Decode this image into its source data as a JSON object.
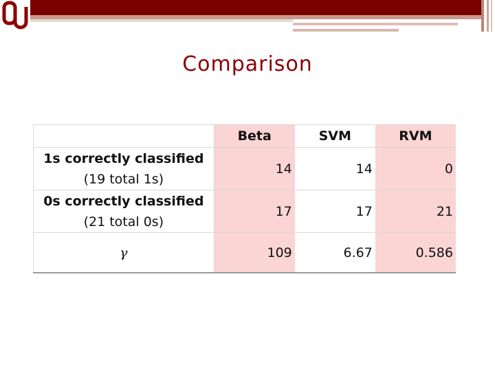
{
  "title": "Comparison",
  "table": {
    "header": [
      "Beta",
      "SVM",
      "RVM"
    ],
    "rows": [
      {
        "label": [
          "1s correctly classified",
          "(19 total 1s)"
        ],
        "values": [
          14,
          14,
          0
        ]
      },
      {
        "label": [
          "0s correctly classified",
          "(21 total 0s)"
        ],
        "values": [
          17,
          17,
          21
        ]
      },
      {
        "label": [
          "γ"
        ],
        "values": [
          109,
          6.67,
          0.586
        ]
      }
    ]
  }
}
